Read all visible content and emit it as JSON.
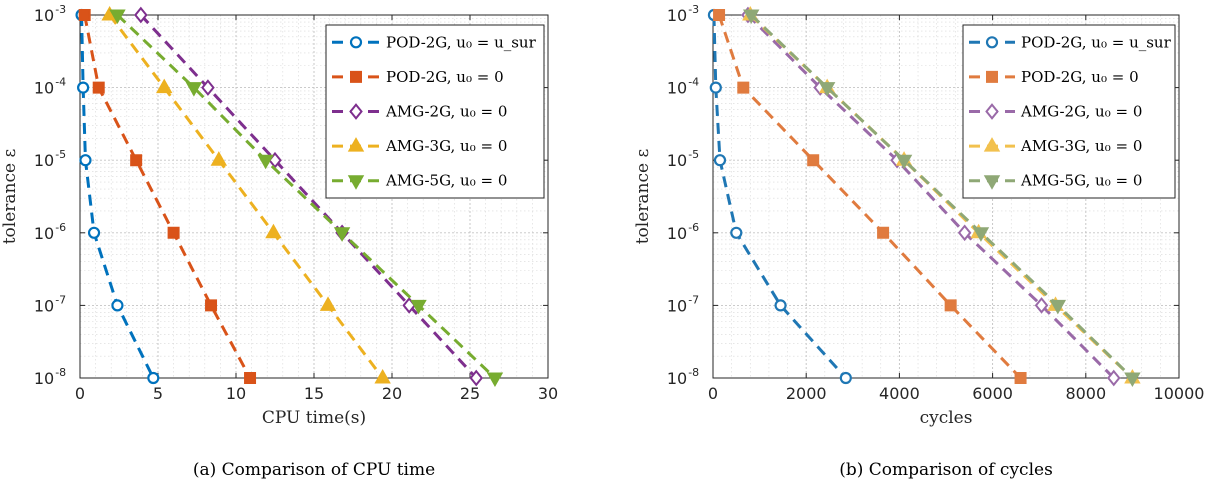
{
  "chart_data": [
    {
      "type": "line",
      "caption": "(a) Comparison of CPU time",
      "xlabel": "CPU time(s)",
      "ylabel": "tolerance ε",
      "xlim": [
        0,
        30
      ],
      "xticks": [
        0,
        5,
        10,
        15,
        20,
        25,
        30
      ],
      "ylim": [
        1e-08,
        0.001
      ],
      "yscale": "log",
      "yticks": [
        1e-08,
        1e-07,
        1e-06,
        1e-05,
        0.0001,
        0.001
      ],
      "ytick_labels": [
        [
          "10",
          "-8"
        ],
        [
          "10",
          "-7"
        ],
        [
          "10",
          "-6"
        ],
        [
          "10",
          "-5"
        ],
        [
          "10",
          "-4"
        ],
        [
          "10",
          "-3"
        ]
      ],
      "grid": true,
      "legend_position": "top-right",
      "series": [
        {
          "name": "POD-2G, u₀ = u_sur",
          "color": "#0072BD",
          "marker": "circle",
          "x": [
            0.1,
            0.2,
            0.35,
            0.9,
            2.4,
            4.7
          ],
          "y": [
            0.001,
            0.0001,
            1e-05,
            1e-06,
            1e-07,
            1e-08
          ]
        },
        {
          "name": "POD-2G, u₀ = 0",
          "color": "#D95319",
          "marker": "square",
          "x": [
            0.3,
            1.2,
            3.6,
            6.0,
            8.4,
            10.9
          ],
          "y": [
            0.001,
            0.0001,
            1e-05,
            1e-06,
            1e-07,
            1e-08
          ]
        },
        {
          "name": "AMG-2G, u₀ = 0",
          "color": "#7E2F8E",
          "marker": "diamond",
          "x": [
            3.9,
            8.2,
            12.5,
            16.8,
            21.1,
            25.4
          ],
          "y": [
            0.001,
            0.0001,
            1e-05,
            1e-06,
            1e-07,
            1e-08
          ]
        },
        {
          "name": "AMG-3G, u₀ = 0",
          "color": "#EDB120",
          "marker": "triangle-up",
          "x": [
            1.9,
            5.4,
            8.9,
            12.4,
            15.9,
            19.4
          ],
          "y": [
            0.001,
            0.0001,
            1e-05,
            1e-06,
            1e-07,
            1e-08
          ]
        },
        {
          "name": "AMG-5G, u₀ = 0",
          "color": "#77AC30",
          "marker": "triangle-down",
          "x": [
            2.4,
            7.3,
            11.9,
            16.8,
            21.7,
            26.6
          ],
          "y": [
            0.001,
            0.0001,
            1e-05,
            1e-06,
            1e-07,
            1e-08
          ]
        }
      ]
    },
    {
      "type": "line",
      "caption": "(b) Comparison of cycles",
      "xlabel": "cycles",
      "ylabel": "tolerance ε",
      "xlim": [
        0,
        10000
      ],
      "xticks": [
        0,
        2000,
        4000,
        6000,
        8000,
        10000
      ],
      "ylim": [
        1e-08,
        0.001
      ],
      "yscale": "log",
      "yticks": [
        1e-08,
        1e-07,
        1e-06,
        1e-05,
        0.0001,
        0.001
      ],
      "ytick_labels": [
        [
          "10",
          "-8"
        ],
        [
          "10",
          "-7"
        ],
        [
          "10",
          "-6"
        ],
        [
          "10",
          "-5"
        ],
        [
          "10",
          "-4"
        ],
        [
          "10",
          "-3"
        ]
      ],
      "grid": true,
      "legend_position": "top-right",
      "series": [
        {
          "name": "POD-2G, u₀ = u_sur",
          "color": "#1F77B4",
          "marker": "circle",
          "x": [
            20,
            60,
            150,
            500,
            1450,
            2850
          ],
          "y": [
            0.001,
            0.0001,
            1e-05,
            1e-06,
            1e-07,
            1e-08
          ]
        },
        {
          "name": "POD-2G, u₀ = 0",
          "color": "#E07B3F",
          "marker": "square",
          "x": [
            130,
            650,
            2150,
            3650,
            5100,
            6600
          ],
          "y": [
            0.001,
            0.0001,
            1e-05,
            1e-06,
            1e-07,
            1e-08
          ]
        },
        {
          "name": "AMG-2G, u₀ = 0",
          "color": "#9A6AA8",
          "marker": "diamond",
          "x": [
            750,
            2300,
            3950,
            5400,
            7050,
            8600
          ],
          "y": [
            0.001,
            0.0001,
            1e-05,
            1e-06,
            1e-07,
            1e-08
          ]
        },
        {
          "name": "AMG-3G, u₀ = 0",
          "color": "#F2C14E",
          "marker": "triangle-up",
          "x": [
            800,
            2450,
            4100,
            5700,
            7350,
            9000
          ],
          "y": [
            0.001,
            0.0001,
            1e-05,
            1e-06,
            1e-07,
            1e-08
          ]
        },
        {
          "name": "AMG-5G, u₀ = 0",
          "color": "#8FA876",
          "marker": "triangle-down",
          "x": [
            820,
            2450,
            4100,
            5750,
            7400,
            9000
          ],
          "y": [
            0.001,
            0.0001,
            1e-05,
            1e-06,
            1e-07,
            1e-08
          ]
        }
      ]
    }
  ]
}
